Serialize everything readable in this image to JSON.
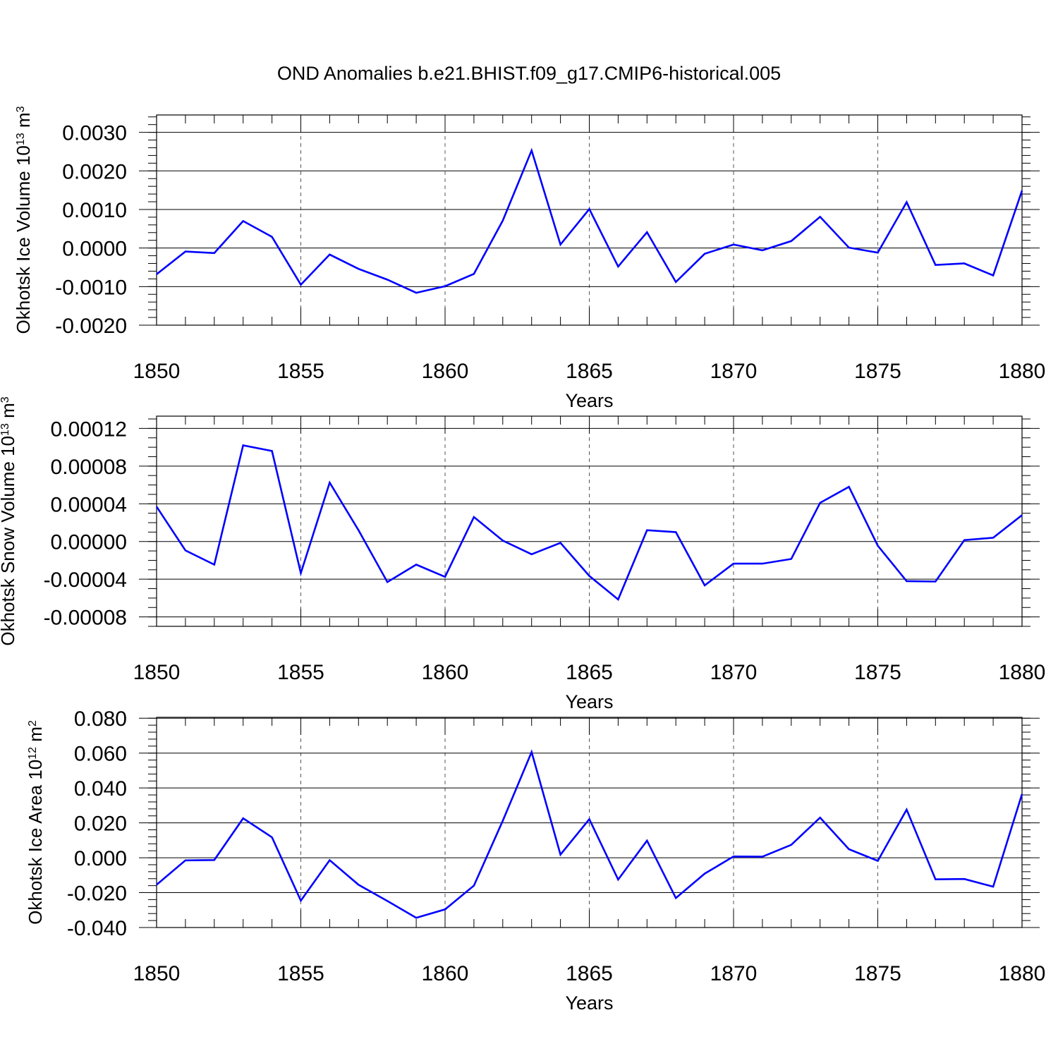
{
  "figure": {
    "title": "OND Anomalies b.e21.BHIST.f09_g17.CMIP6-historical.005",
    "line_color": "#0000ff",
    "frame_color": "#000000",
    "grid_color": "#555555"
  },
  "chart_data": [
    {
      "type": "line",
      "ylabel": "Okhotsk Ice Volume 10",
      "ylabel_exp": "13",
      "ylabel_unit": "m",
      "ylabel_unit_exp": "3",
      "xlabel": "Years",
      "xlim": [
        1850,
        1880
      ],
      "ylim": [
        -0.002,
        0.00345
      ],
      "xticks": [
        1850,
        1855,
        1860,
        1865,
        1870,
        1875,
        1880
      ],
      "xtick_labels": [
        "1850",
        "1855",
        "1860",
        "1865",
        "1870",
        "1875",
        "1880"
      ],
      "yticks": [
        -0.002,
        -0.001,
        0.0,
        0.001,
        0.002,
        0.003
      ],
      "ytick_labels": [
        "-0.0020",
        "-0.0010",
        "0.0000",
        "0.0010",
        "0.0020",
        "0.0030"
      ],
      "yminor_step": 0.0002,
      "x": [
        1850,
        1851,
        1852,
        1853,
        1854,
        1855,
        1856,
        1857,
        1858,
        1859,
        1860,
        1861,
        1862,
        1863,
        1864,
        1865,
        1866,
        1867,
        1868,
        1869,
        1870,
        1871,
        1872,
        1873,
        1874,
        1875,
        1876,
        1877,
        1878,
        1879,
        1880
      ],
      "values": [
        -0.00068,
        -9e-05,
        -0.00013,
        0.0007,
        0.00029,
        -0.00095,
        -0.00017,
        -0.00054,
        -0.00082,
        -0.00116,
        -0.00099,
        -0.00067,
        0.00071,
        0.00253,
        9e-05,
        0.00101,
        -0.00048,
        0.00041,
        -0.00088,
        -0.00015,
        9e-05,
        -6e-05,
        0.00018,
        0.00081,
        1e-05,
        -0.00012,
        0.00119,
        -0.00044,
        -0.0004,
        -0.00071,
        0.00149
      ]
    },
    {
      "type": "line",
      "ylabel": "Okhotsk Snow Volume 10",
      "ylabel_exp": "13",
      "ylabel_unit": "m",
      "ylabel_unit_exp": "3",
      "xlabel": "Years",
      "xlim": [
        1850,
        1880
      ],
      "ylim": [
        -9e-05,
        0.000133
      ],
      "xticks": [
        1850,
        1855,
        1860,
        1865,
        1870,
        1875,
        1880
      ],
      "xtick_labels": [
        "1850",
        "1855",
        "1860",
        "1865",
        "1870",
        "1875",
        "1880"
      ],
      "yticks": [
        -8e-05,
        -4e-05,
        0.0,
        4e-05,
        8e-05,
        0.00012
      ],
      "ytick_labels": [
        "-0.00008",
        "-0.00004",
        "0.00000",
        "0.00004",
        "0.00008",
        "0.00012"
      ],
      "yminor_step": 1e-05,
      "x": [
        1850,
        1851,
        1852,
        1853,
        1854,
        1855,
        1856,
        1857,
        1858,
        1859,
        1860,
        1861,
        1862,
        1863,
        1864,
        1865,
        1866,
        1867,
        1868,
        1869,
        1870,
        1871,
        1872,
        1873,
        1874,
        1875,
        1876,
        1877,
        1878,
        1879,
        1880
      ],
      "values": [
        3.7e-05,
        -9.5e-06,
        -2.45e-05,
        0.000102,
        9.6e-05,
        -3.35e-05,
        6.25e-05,
        1.2e-05,
        -4.3e-05,
        -2.45e-05,
        -3.75e-05,
        2.6e-05,
        1e-06,
        -1.35e-05,
        -1.5e-06,
        -3.65e-05,
        -6.15e-05,
        1.2e-05,
        1e-05,
        -4.65e-05,
        -2.35e-05,
        -2.35e-05,
        -1.85e-05,
        4.1e-05,
        5.8e-05,
        -4.5e-06,
        -4.2e-05,
        -4.25e-05,
        1.5e-06,
        4e-06,
        2.8e-05
      ]
    },
    {
      "type": "line",
      "ylabel": "Okhotsk Ice Area 10",
      "ylabel_exp": "12",
      "ylabel_unit": "m",
      "ylabel_unit_exp": "2",
      "xlabel": "Years",
      "xlim": [
        1850,
        1880
      ],
      "ylim": [
        -0.04,
        0.0805
      ],
      "xticks": [
        1850,
        1855,
        1860,
        1865,
        1870,
        1875,
        1880
      ],
      "xtick_labels": [
        "1850",
        "1855",
        "1860",
        "1865",
        "1870",
        "1875",
        "1880"
      ],
      "yticks": [
        -0.04,
        -0.02,
        0.0,
        0.02,
        0.04,
        0.06,
        0.08
      ],
      "ytick_labels": [
        "-0.040",
        "-0.020",
        "0.000",
        "0.020",
        "0.040",
        "0.060",
        "0.080"
      ],
      "yminor_step": 0.004,
      "x": [
        1850,
        1851,
        1852,
        1853,
        1854,
        1855,
        1856,
        1857,
        1858,
        1859,
        1860,
        1861,
        1862,
        1863,
        1864,
        1865,
        1866,
        1867,
        1868,
        1869,
        1870,
        1871,
        1872,
        1873,
        1874,
        1875,
        1876,
        1877,
        1878,
        1879,
        1880
      ],
      "values": [
        -0.0155,
        -0.0015,
        -0.0013,
        0.0226,
        0.0117,
        -0.0246,
        -0.0014,
        -0.0155,
        -0.0248,
        -0.0344,
        -0.0296,
        -0.016,
        0.0212,
        0.0606,
        0.0018,
        0.0221,
        -0.0125,
        0.0098,
        -0.0231,
        -0.0091,
        0.0007,
        0.0006,
        0.0074,
        0.023,
        0.0049,
        -0.0018,
        0.0276,
        -0.0124,
        -0.0122,
        -0.0166,
        0.0365
      ]
    }
  ]
}
